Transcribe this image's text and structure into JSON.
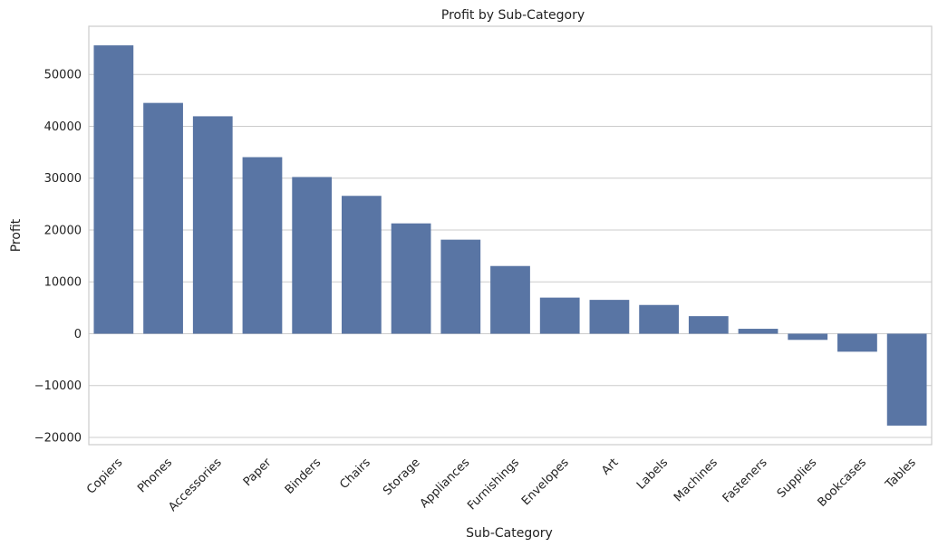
{
  "chart_data": {
    "type": "bar",
    "title": "Profit by Sub-Category",
    "xlabel": "Sub-Category",
    "ylabel": "Profit",
    "categories": [
      "Copiers",
      "Phones",
      "Accessories",
      "Paper",
      "Binders",
      "Chairs",
      "Storage",
      "Appliances",
      "Furnishings",
      "Envelopes",
      "Art",
      "Labels",
      "Machines",
      "Fasteners",
      "Supplies",
      "Bookcases",
      "Tables"
    ],
    "values": [
      55618,
      44516,
      41937,
      34054,
      30222,
      26590,
      21279,
      18138,
      13059,
      6964,
      6528,
      5546,
      3385,
      950,
      -1189,
      -3473,
      -17725
    ],
    "yticks": [
      -20000,
      -10000,
      0,
      10000,
      20000,
      30000,
      40000,
      50000
    ],
    "ylim": [
      -21400,
      59300
    ],
    "bar_color": "#5975a4",
    "grid": true
  }
}
